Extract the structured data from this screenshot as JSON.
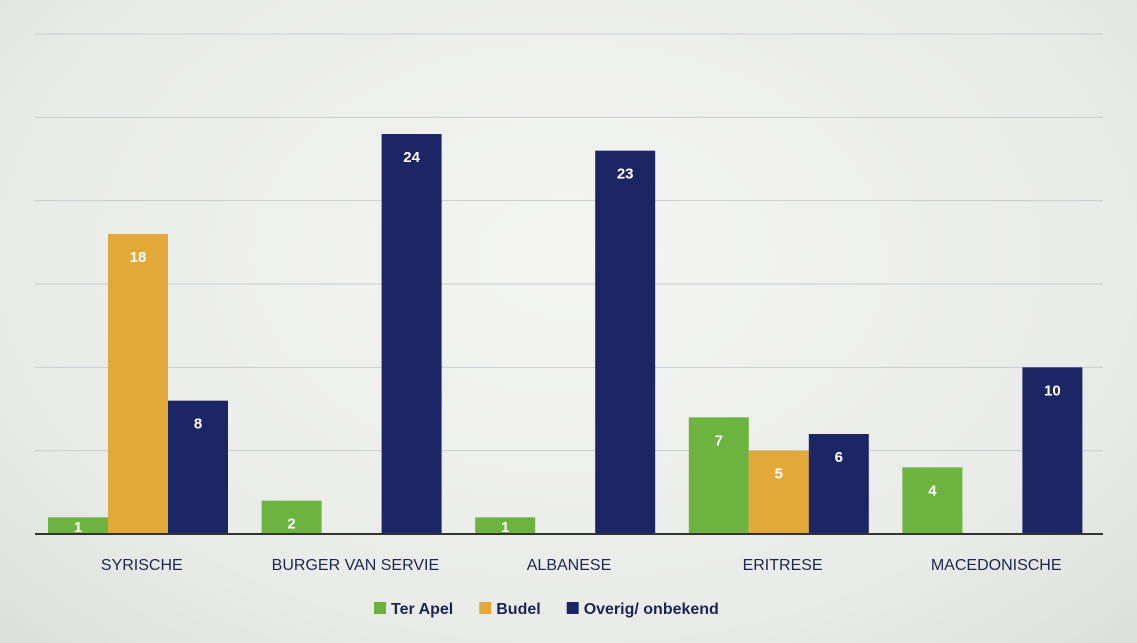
{
  "chart_data": {
    "type": "bar",
    "title": "",
    "xlabel": "",
    "ylabel": "",
    "ylim": [
      0,
      30
    ],
    "grid": true,
    "legend_position": "bottom",
    "categories": [
      "SYRISCHE",
      "BURGER VAN SERVIE",
      "ALBANESE",
      "ERITRESE",
      "MACEDONISCHE"
    ],
    "series": [
      {
        "name": "Ter Apel",
        "color": "#6db33f",
        "values": [
          1,
          2,
          1,
          7,
          4
        ]
      },
      {
        "name": "Budel",
        "color": "#e3a83a",
        "values": [
          18,
          null,
          null,
          5,
          null
        ]
      },
      {
        "name": "Overig/ onbekend",
        "color": "#1c2664",
        "values": [
          8,
          24,
          23,
          6,
          10
        ]
      }
    ]
  }
}
